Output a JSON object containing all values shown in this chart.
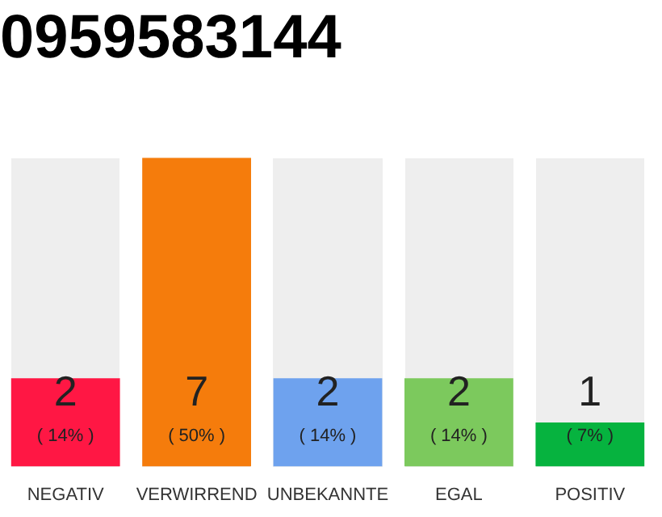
{
  "chart_data": {
    "type": "bar",
    "title": "0959583144",
    "categories": [
      "NEGATIV",
      "VERWIRREND",
      "UNBEKANNTE",
      "EGAL",
      "POSITIV"
    ],
    "values": [
      2,
      7,
      2,
      2,
      1
    ],
    "colors": [
      "#ff1744",
      "#f57c0c",
      "#6ea2ee",
      "#7cc95d",
      "#06b33f"
    ],
    "ylim": [
      0,
      7
    ],
    "tick_labels": "x",
    "grid": false,
    "legend": false,
    "data_labels": true,
    "annotations": [
      "( 14% )",
      "( 50% )",
      "( 14% )",
      "( 14% )",
      "( 7% )"
    ]
  }
}
